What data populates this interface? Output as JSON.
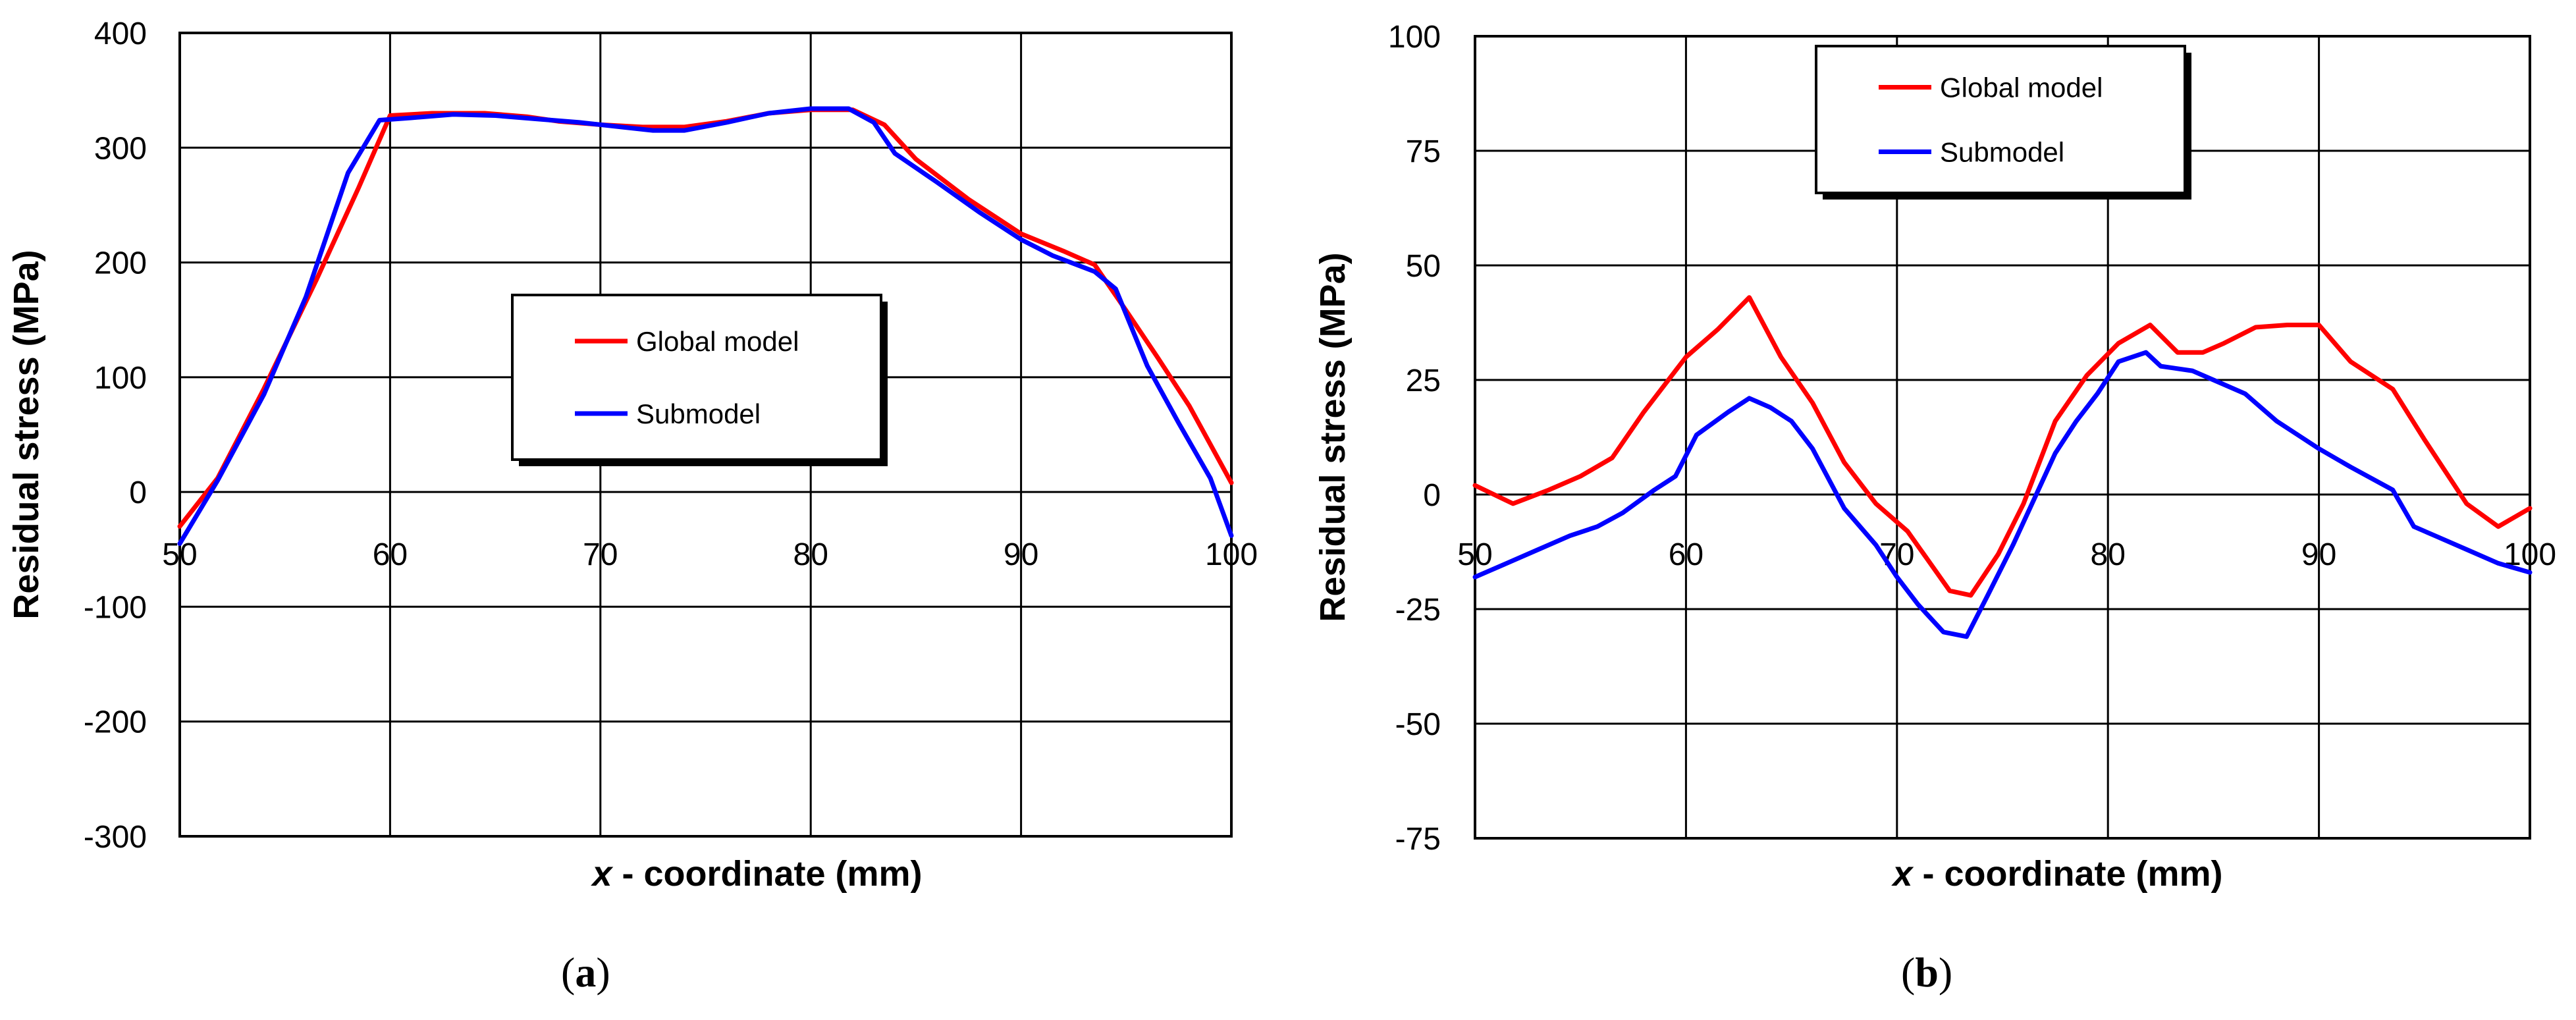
{
  "chart_data": [
    {
      "type": "line",
      "panel_label": "a",
      "xlabel_var": "x",
      "xlabel_rest": " - coordinate (mm)",
      "ylabel": "Residual stress (MPa)",
      "xlim": [
        50,
        100
      ],
      "ylim": [
        -300,
        400
      ],
      "xticks": [
        50,
        60,
        70,
        80,
        90,
        100
      ],
      "yticks": [
        -300,
        -200,
        -100,
        0,
        100,
        200,
        300,
        400
      ],
      "grid": true,
      "legend_position": "center-right",
      "series": [
        {
          "name": "Global model",
          "color": "#ff0000",
          "x": [
            50,
            51.8,
            54,
            56.5,
            58.5,
            60,
            62,
            64.5,
            66.5,
            68,
            70,
            72,
            74,
            76,
            78,
            80,
            82,
            83.5,
            85,
            87.5,
            90,
            92,
            93.5,
            95,
            96.5,
            98,
            100
          ],
          "y": [
            -30,
            12,
            90,
            185,
            265,
            328,
            330,
            330,
            327,
            323,
            320,
            318,
            318,
            323,
            330,
            333,
            333,
            320,
            290,
            255,
            225,
            210,
            198,
            158,
            117,
            75,
            8
          ]
        },
        {
          "name": "Submodel",
          "color": "#0000ff",
          "x": [
            50,
            51.8,
            54,
            56,
            58,
            59.5,
            61,
            63,
            65,
            67,
            69,
            71,
            72.5,
            74,
            76,
            78,
            80,
            81.8,
            83,
            84,
            86,
            88,
            90,
            91.5,
            93.5,
            94.5,
            96,
            97.5,
            99,
            100
          ],
          "y": [
            -45,
            10,
            85,
            170,
            278,
            324,
            326,
            329,
            328,
            325,
            322,
            318,
            315,
            315,
            322,
            330,
            334,
            334,
            322,
            295,
            270,
            244,
            220,
            206,
            192,
            177,
            110,
            60,
            12,
            -38
          ]
        }
      ]
    },
    {
      "type": "line",
      "panel_label": "b",
      "xlabel_var": "x",
      "xlabel_rest": " - coordinate (mm)",
      "ylabel": "Residual stress (MPa)",
      "xlim": [
        50,
        100
      ],
      "ylim": [
        -75,
        100
      ],
      "xticks": [
        50,
        60,
        70,
        80,
        90,
        100
      ],
      "yticks": [
        -75,
        -50,
        -25,
        0,
        25,
        50,
        75,
        100
      ],
      "grid": true,
      "legend_position": "top-center",
      "series": [
        {
          "name": "Global model",
          "color": "#ff0000",
          "x": [
            50,
            51.8,
            53.5,
            55,
            56.5,
            58,
            60,
            61.5,
            63,
            64.5,
            66,
            67.5,
            69,
            70.5,
            72.5,
            73.5,
            74.8,
            76,
            77.5,
            79,
            80.5,
            82,
            83.3,
            84.5,
            85.5,
            87,
            88.5,
            90,
            91.5,
            93.5,
            95,
            97,
            98.5,
            100
          ],
          "y": [
            2,
            -2,
            1,
            4,
            8,
            18,
            30,
            36,
            43,
            30,
            20,
            7,
            -2,
            -8,
            -21,
            -22,
            -13,
            -2,
            16,
            26,
            33,
            37,
            31,
            31,
            33,
            36.5,
            37,
            37,
            29,
            23,
            12,
            -2,
            -7,
            -3
          ]
        },
        {
          "name": "Submodel",
          "color": "#0000ff",
          "x": [
            50,
            51.5,
            53,
            54.5,
            55.8,
            57,
            58.5,
            59.5,
            60.5,
            62,
            63,
            64,
            65,
            66,
            67.5,
            69,
            70,
            71,
            72.2,
            73.3,
            74.3,
            75.5,
            76.5,
            77.5,
            78.5,
            79.5,
            80.5,
            81.8,
            82.5,
            84,
            85,
            86.5,
            88,
            89,
            90,
            91.5,
            93.5,
            94.5,
            95.5,
            97,
            98.5,
            100
          ],
          "y": [
            -18,
            -15,
            -12,
            -9,
            -7,
            -4,
            1,
            4,
            13,
            18,
            21,
            19,
            16,
            10,
            -3,
            -11,
            -18,
            -24,
            -30,
            -31,
            -22,
            -11,
            -1,
            9,
            16,
            22,
            29,
            31,
            28,
            27,
            25,
            22,
            16,
            13,
            10,
            6,
            1,
            -7,
            -9,
            -12,
            -15,
            -17
          ]
        }
      ]
    }
  ]
}
